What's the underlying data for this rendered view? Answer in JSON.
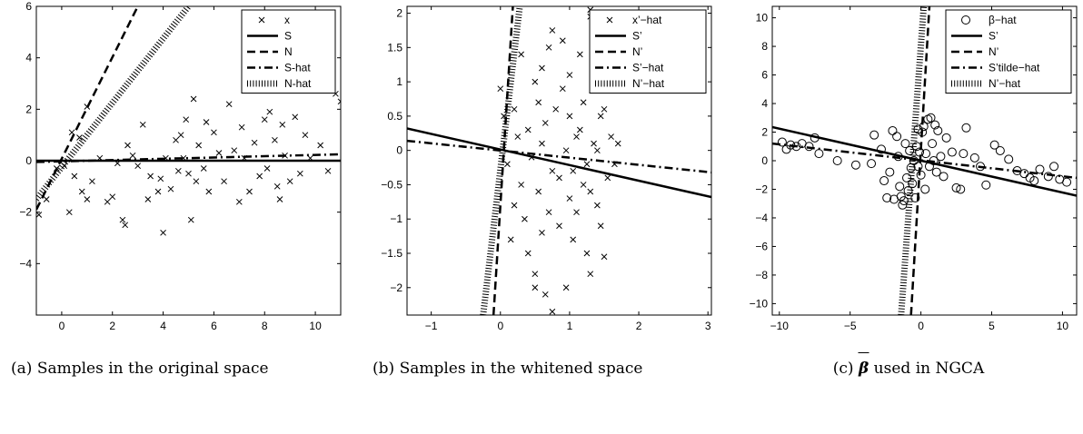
{
  "chart_data": [
    {
      "type": "scatter",
      "title": "",
      "xlabel": "",
      "ylabel": "",
      "xlim": [
        -1,
        11
      ],
      "ylim": [
        -6,
        6
      ],
      "xticks": [
        0,
        2,
        4,
        6,
        8,
        10
      ],
      "yticks": [
        -4,
        -2,
        0,
        2,
        4,
        6
      ],
      "grid": false,
      "legend_position": "top-right",
      "points_series": {
        "name": "x",
        "marker": "x",
        "points": [
          [
            -0.9,
            -2.1
          ],
          [
            -0.6,
            -1.5
          ],
          [
            -0.2,
            -0.3
          ],
          [
            0.1,
            -0.2
          ],
          [
            0.3,
            -2.0
          ],
          [
            0.5,
            -0.6
          ],
          [
            0.7,
            0.9
          ],
          [
            0.8,
            -1.2
          ],
          [
            1.0,
            -1.5
          ],
          [
            1.2,
            -0.8
          ],
          [
            1.0,
            2.1
          ],
          [
            0.4,
            1.1
          ],
          [
            1.5,
            0.1
          ],
          [
            1.8,
            -1.6
          ],
          [
            2.0,
            -1.4
          ],
          [
            2.2,
            -0.1
          ],
          [
            2.4,
            -2.3
          ],
          [
            2.5,
            -2.5
          ],
          [
            2.6,
            0.6
          ],
          [
            2.8,
            0.2
          ],
          [
            3.0,
            -0.2
          ],
          [
            3.2,
            1.4
          ],
          [
            3.4,
            -1.5
          ],
          [
            3.5,
            -0.6
          ],
          [
            3.8,
            -1.2
          ],
          [
            3.9,
            -0.7
          ],
          [
            4.0,
            -2.8
          ],
          [
            4.1,
            0.1
          ],
          [
            4.3,
            -1.1
          ],
          [
            4.5,
            0.8
          ],
          [
            4.6,
            -0.4
          ],
          [
            4.7,
            1.0
          ],
          [
            4.8,
            0.1
          ],
          [
            4.9,
            1.6
          ],
          [
            5.0,
            -0.5
          ],
          [
            5.1,
            -2.3
          ],
          [
            5.2,
            2.4
          ],
          [
            5.3,
            -0.8
          ],
          [
            5.4,
            0.6
          ],
          [
            5.6,
            -0.3
          ],
          [
            5.7,
            1.5
          ],
          [
            5.8,
            -1.2
          ],
          [
            6.0,
            1.1
          ],
          [
            6.2,
            0.3
          ],
          [
            6.4,
            -0.8
          ],
          [
            6.6,
            2.2
          ],
          [
            6.8,
            0.4
          ],
          [
            7.0,
            -1.6
          ],
          [
            7.1,
            1.3
          ],
          [
            7.2,
            0.1
          ],
          [
            7.4,
            -1.2
          ],
          [
            7.6,
            0.7
          ],
          [
            7.8,
            -0.6
          ],
          [
            8.0,
            1.6
          ],
          [
            8.1,
            -0.3
          ],
          [
            8.2,
            1.9
          ],
          [
            8.4,
            0.8
          ],
          [
            8.5,
            -1.0
          ],
          [
            8.6,
            -1.5
          ],
          [
            8.7,
            1.4
          ],
          [
            8.8,
            0.2
          ],
          [
            9.0,
            -0.8
          ],
          [
            9.2,
            1.7
          ],
          [
            9.4,
            -0.5
          ],
          [
            9.6,
            1.0
          ],
          [
            9.8,
            0.1
          ],
          [
            10.2,
            0.6
          ],
          [
            10.8,
            2.6
          ],
          [
            11.0,
            2.3
          ],
          [
            10.5,
            -0.4
          ]
        ]
      },
      "lines": [
        {
          "name": "S",
          "style": "solid",
          "from": [
            -1,
            0
          ],
          "to": [
            11,
            0
          ]
        },
        {
          "name": "N",
          "style": "dashed",
          "from": [
            -1,
            -1.9
          ],
          "to": [
            3,
            6
          ]
        },
        {
          "name": "S-hat",
          "style": "dashdot",
          "from": [
            -1,
            -0.05
          ],
          "to": [
            11,
            0.25
          ]
        },
        {
          "name": "N-hat",
          "style": "dotted",
          "from": [
            -1,
            -1.5
          ],
          "to": [
            5,
            6
          ]
        }
      ]
    },
    {
      "type": "scatter",
      "title": "",
      "xlabel": "",
      "ylabel": "",
      "xlim": [
        -1.35,
        3.05
      ],
      "ylim": [
        -2.4,
        2.1
      ],
      "xticks": [
        -1,
        0,
        1,
        2,
        3
      ],
      "yticks": [
        -2,
        -1.5,
        -1,
        -0.5,
        0,
        0.5,
        1,
        1.5,
        2
      ],
      "grid": false,
      "legend_position": "top-right",
      "points_series": {
        "name": "x’−hat",
        "marker": "x",
        "points": [
          [
            0.0,
            0.9
          ],
          [
            0.05,
            0.5
          ],
          [
            0.1,
            -0.2
          ],
          [
            0.15,
            -1.3
          ],
          [
            0.2,
            0.6
          ],
          [
            0.2,
            -0.8
          ],
          [
            0.25,
            0.2
          ],
          [
            0.3,
            1.4
          ],
          [
            0.3,
            -0.5
          ],
          [
            0.35,
            -1.0
          ],
          [
            0.4,
            0.3
          ],
          [
            0.4,
            -1.5
          ],
          [
            0.45,
            -0.1
          ],
          [
            0.5,
            1.0
          ],
          [
            0.5,
            -1.8
          ],
          [
            0.5,
            -2.0
          ],
          [
            0.55,
            0.7
          ],
          [
            0.55,
            -0.6
          ],
          [
            0.6,
            0.1
          ],
          [
            0.6,
            -1.2
          ],
          [
            0.65,
            -2.1
          ],
          [
            0.65,
            0.4
          ],
          [
            0.7,
            1.5
          ],
          [
            0.7,
            -0.9
          ],
          [
            0.75,
            -0.3
          ],
          [
            0.75,
            1.75
          ],
          [
            0.75,
            -2.35
          ],
          [
            0.8,
            0.6
          ],
          [
            0.85,
            -1.1
          ],
          [
            0.85,
            -0.4
          ],
          [
            0.9,
            0.9
          ],
          [
            0.9,
            1.6
          ],
          [
            0.95,
            -2.0
          ],
          [
            0.95,
            0.0
          ],
          [
            1.0,
            -0.7
          ],
          [
            1.0,
            0.5
          ],
          [
            1.0,
            1.1
          ],
          [
            1.05,
            -1.3
          ],
          [
            1.05,
            -0.3
          ],
          [
            1.1,
            0.2
          ],
          [
            1.1,
            -0.9
          ],
          [
            1.15,
            1.4
          ],
          [
            1.15,
            0.3
          ],
          [
            1.2,
            -0.5
          ],
          [
            1.2,
            0.7
          ],
          [
            1.25,
            -1.5
          ],
          [
            1.25,
            -0.2
          ],
          [
            1.3,
            2.05
          ],
          [
            1.3,
            1.95
          ],
          [
            1.3,
            -0.6
          ],
          [
            1.35,
            0.1
          ],
          [
            1.35,
            1.2
          ],
          [
            1.4,
            -0.8
          ],
          [
            1.4,
            0.0
          ],
          [
            1.45,
            -1.1
          ],
          [
            1.45,
            0.5
          ],
          [
            1.5,
            -1.55
          ],
          [
            1.5,
            0.6
          ],
          [
            1.55,
            -0.4
          ],
          [
            1.6,
            0.2
          ],
          [
            1.65,
            -0.2
          ],
          [
            1.7,
            0.1
          ],
          [
            1.3,
            -1.8
          ],
          [
            0.6,
            1.2
          ]
        ]
      },
      "lines": [
        {
          "name": "S’",
          "style": "solid",
          "from": [
            -1.35,
            0.32
          ],
          "to": [
            3.05,
            -0.68
          ]
        },
        {
          "name": "N’",
          "style": "dashed",
          "from": [
            -0.1,
            -2.4
          ],
          "to": [
            0.18,
            2.1
          ]
        },
        {
          "name": "S’−hat",
          "style": "dashdot",
          "from": [
            -1.35,
            0.14
          ],
          "to": [
            3.05,
            -0.32
          ]
        },
        {
          "name": "N’−hat",
          "style": "dotted",
          "from": [
            -0.25,
            -2.4
          ],
          "to": [
            0.28,
            2.1
          ]
        }
      ]
    },
    {
      "type": "scatter",
      "title": "",
      "xlabel": "",
      "ylabel": "",
      "xlim": [
        -10.5,
        11
      ],
      "ylim": [
        -10.8,
        10.8
      ],
      "xticks": [
        -10,
        -5,
        0,
        5,
        10
      ],
      "yticks": [
        -10,
        -8,
        -6,
        -4,
        -2,
        0,
        2,
        4,
        6,
        8,
        10
      ],
      "grid": false,
      "legend_position": "top-right",
      "points_series": {
        "name": "β−hat",
        "marker": "circle",
        "points": [
          [
            -9.8,
            1.3
          ],
          [
            -9.5,
            0.8
          ],
          [
            -9.2,
            1.1
          ],
          [
            -8.8,
            1.0
          ],
          [
            -8.4,
            1.2
          ],
          [
            -7.9,
            1.0
          ],
          [
            -7.5,
            1.6
          ],
          [
            -7.2,
            0.5
          ],
          [
            -5.9,
            0.0
          ],
          [
            -4.6,
            -0.3
          ],
          [
            -3.5,
            -0.2
          ],
          [
            -3.3,
            1.8
          ],
          [
            -2.8,
            0.8
          ],
          [
            -2.6,
            -1.4
          ],
          [
            -2.4,
            -2.6
          ],
          [
            -2.2,
            -0.8
          ],
          [
            -2.0,
            2.1
          ],
          [
            -1.9,
            -2.7
          ],
          [
            -1.7,
            1.7
          ],
          [
            -1.6,
            0.3
          ],
          [
            -1.5,
            -1.8
          ],
          [
            -1.4,
            -2.5
          ],
          [
            -1.3,
            -3.1
          ],
          [
            -1.2,
            -2.8
          ],
          [
            -1.1,
            1.2
          ],
          [
            -1.0,
            -1.2
          ],
          [
            -0.9,
            -2.1
          ],
          [
            -0.8,
            0.7
          ],
          [
            -0.7,
            -0.5
          ],
          [
            -0.6,
            -1.6
          ],
          [
            -0.5,
            0.0
          ],
          [
            -0.4,
            -2.6
          ],
          [
            -0.3,
            1.0
          ],
          [
            -0.2,
            -0.4
          ],
          [
            -0.1,
            0.6
          ],
          [
            0.0,
            -1.0
          ],
          [
            0.1,
            2.0
          ],
          [
            0.2,
            2.4
          ],
          [
            0.3,
            -2.0
          ],
          [
            0.35,
            0.5
          ],
          [
            0.5,
            2.9
          ],
          [
            0.6,
            -0.4
          ],
          [
            0.7,
            3.0
          ],
          [
            0.8,
            1.2
          ],
          [
            0.9,
            0.0
          ],
          [
            1.0,
            2.5
          ],
          [
            1.1,
            -0.8
          ],
          [
            1.2,
            2.1
          ],
          [
            1.4,
            0.3
          ],
          [
            1.6,
            -1.1
          ],
          [
            1.8,
            1.6
          ],
          [
            2.2,
            0.6
          ],
          [
            2.5,
            -1.9
          ],
          [
            2.8,
            -2.0
          ],
          [
            3.0,
            0.5
          ],
          [
            3.2,
            2.3
          ],
          [
            3.8,
            0.2
          ],
          [
            4.2,
            -0.4
          ],
          [
            4.6,
            -1.7
          ],
          [
            5.2,
            1.1
          ],
          [
            5.6,
            0.7
          ],
          [
            6.2,
            0.1
          ],
          [
            6.8,
            -0.7
          ],
          [
            7.3,
            -0.9
          ],
          [
            7.7,
            -1.2
          ],
          [
            8.4,
            -0.6
          ],
          [
            9.0,
            -1.1
          ],
          [
            9.4,
            -0.4
          ],
          [
            9.8,
            -1.3
          ],
          [
            10.3,
            -1.5
          ],
          [
            8.0,
            -1.4
          ],
          [
            -0.2,
            2.2
          ]
        ]
      },
      "lines": [
        {
          "name": "S’",
          "style": "solid",
          "from": [
            -10.5,
            2.35
          ],
          "to": [
            11,
            -2.45
          ]
        },
        {
          "name": "N’",
          "style": "dashed",
          "from": [
            -0.7,
            -10.8
          ],
          "to": [
            0.6,
            10.8
          ]
        },
        {
          "name": "S’tilde−hat",
          "style": "dashdot",
          "from": [
            -10.5,
            1.2
          ],
          "to": [
            11,
            -1.2
          ]
        },
        {
          "name": "N’−hat",
          "style": "dotted",
          "from": [
            -1.4,
            -10.8
          ],
          "to": [
            0.2,
            10.8
          ]
        }
      ]
    }
  ],
  "captions": [
    {
      "tag": "(a)",
      "text": "Samples in the original space"
    },
    {
      "tag": "(b)",
      "text": "Samples in the whitened space"
    },
    {
      "tag": "(c)",
      "text_after": "used in NGCA"
    }
  ]
}
